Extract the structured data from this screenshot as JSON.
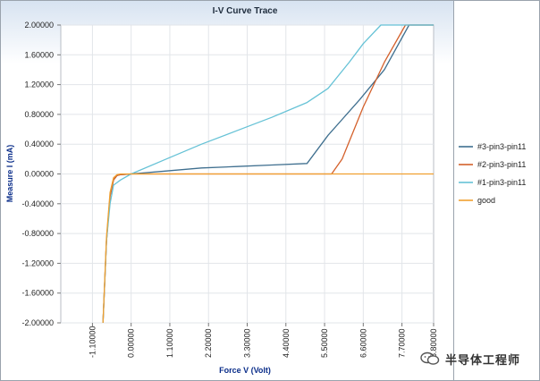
{
  "chart_data": {
    "type": "line",
    "title": "I-V Curve Trace",
    "xlabel": "Force V (Volt)",
    "ylabel": "Measure I (mA)",
    "xlim": [
      -2.0,
      8.6
    ],
    "ylim": [
      -2.0,
      2.0
    ],
    "x_ticks": [
      -1.1,
      0.0,
      1.1,
      2.2,
      3.3,
      4.4,
      5.5,
      6.6,
      7.7,
      8.8
    ],
    "x_tick_labels": [
      "-1.10000",
      "0.00000",
      "1.10000",
      "2.20000",
      "3.30000",
      "4.40000",
      "5.50000",
      "6.60000",
      "7.70000",
      "8.80000"
    ],
    "y_ticks": [
      2.0,
      1.6,
      1.2,
      0.8,
      0.4,
      0.0,
      -0.4,
      -0.8,
      -1.2,
      -1.6,
      -2.0
    ],
    "y_tick_labels": [
      "2.00000",
      "1.60000",
      "1.20000",
      "0.80000",
      "0.40000",
      "0.00000",
      "-0.40000",
      "-0.80000",
      "-1.20000",
      "-1.60000",
      "-2.00000"
    ],
    "grid": true,
    "legend_position": "right",
    "series": [
      {
        "name": "#3-pin3-pin11",
        "color": "#3f6f8f",
        "x": [
          -0.8,
          -0.7,
          -0.6,
          -0.5,
          -0.4,
          -0.3,
          0.0,
          1.0,
          2.0,
          3.0,
          4.0,
          5.0,
          5.6,
          6.5,
          7.2,
          7.9,
          8.6
        ],
        "y": [
          -2.0,
          -0.9,
          -0.3,
          -0.08,
          -0.02,
          -0.01,
          0.0,
          0.04,
          0.08,
          0.1,
          0.12,
          0.14,
          0.52,
          1.0,
          1.4,
          2.0,
          2.0
        ]
      },
      {
        "name": "#2-pin3-pin11",
        "color": "#d4602b",
        "x": [
          -0.8,
          -0.7,
          -0.6,
          -0.5,
          -0.4,
          -0.3,
          0.0,
          2.0,
          4.0,
          5.7,
          6.0,
          6.6,
          7.2,
          7.8,
          8.6
        ],
        "y": [
          -2.0,
          -0.9,
          -0.3,
          -0.08,
          -0.02,
          -0.01,
          0.0,
          0.0,
          0.0,
          0.0,
          0.2,
          0.9,
          1.5,
          2.0,
          2.0
        ]
      },
      {
        "name": "#1-pin3-pin11",
        "color": "#66c2d6",
        "x": [
          -0.8,
          -0.7,
          -0.6,
          -0.5,
          -0.3,
          0.0,
          1.0,
          2.0,
          3.0,
          4.0,
          5.0,
          5.6,
          6.2,
          6.6,
          7.1,
          8.6
        ],
        "y": [
          -2.0,
          -0.9,
          -0.4,
          -0.15,
          -0.08,
          0.0,
          0.2,
          0.4,
          0.58,
          0.76,
          0.96,
          1.15,
          1.5,
          1.75,
          2.0,
          2.0
        ]
      },
      {
        "name": "good",
        "color": "#f0a030",
        "x": [
          -0.8,
          -0.7,
          -0.6,
          -0.5,
          -0.4,
          -0.3,
          0.0,
          2.0,
          4.0,
          6.0,
          8.0,
          8.6
        ],
        "y": [
          -2.0,
          -0.85,
          -0.25,
          -0.05,
          -0.01,
          0.0,
          0.0,
          0.0,
          0.0,
          0.0,
          0.0,
          0.0
        ]
      }
    ]
  },
  "watermark": {
    "text": "半导体工程师",
    "icon": "wechat-icon"
  }
}
